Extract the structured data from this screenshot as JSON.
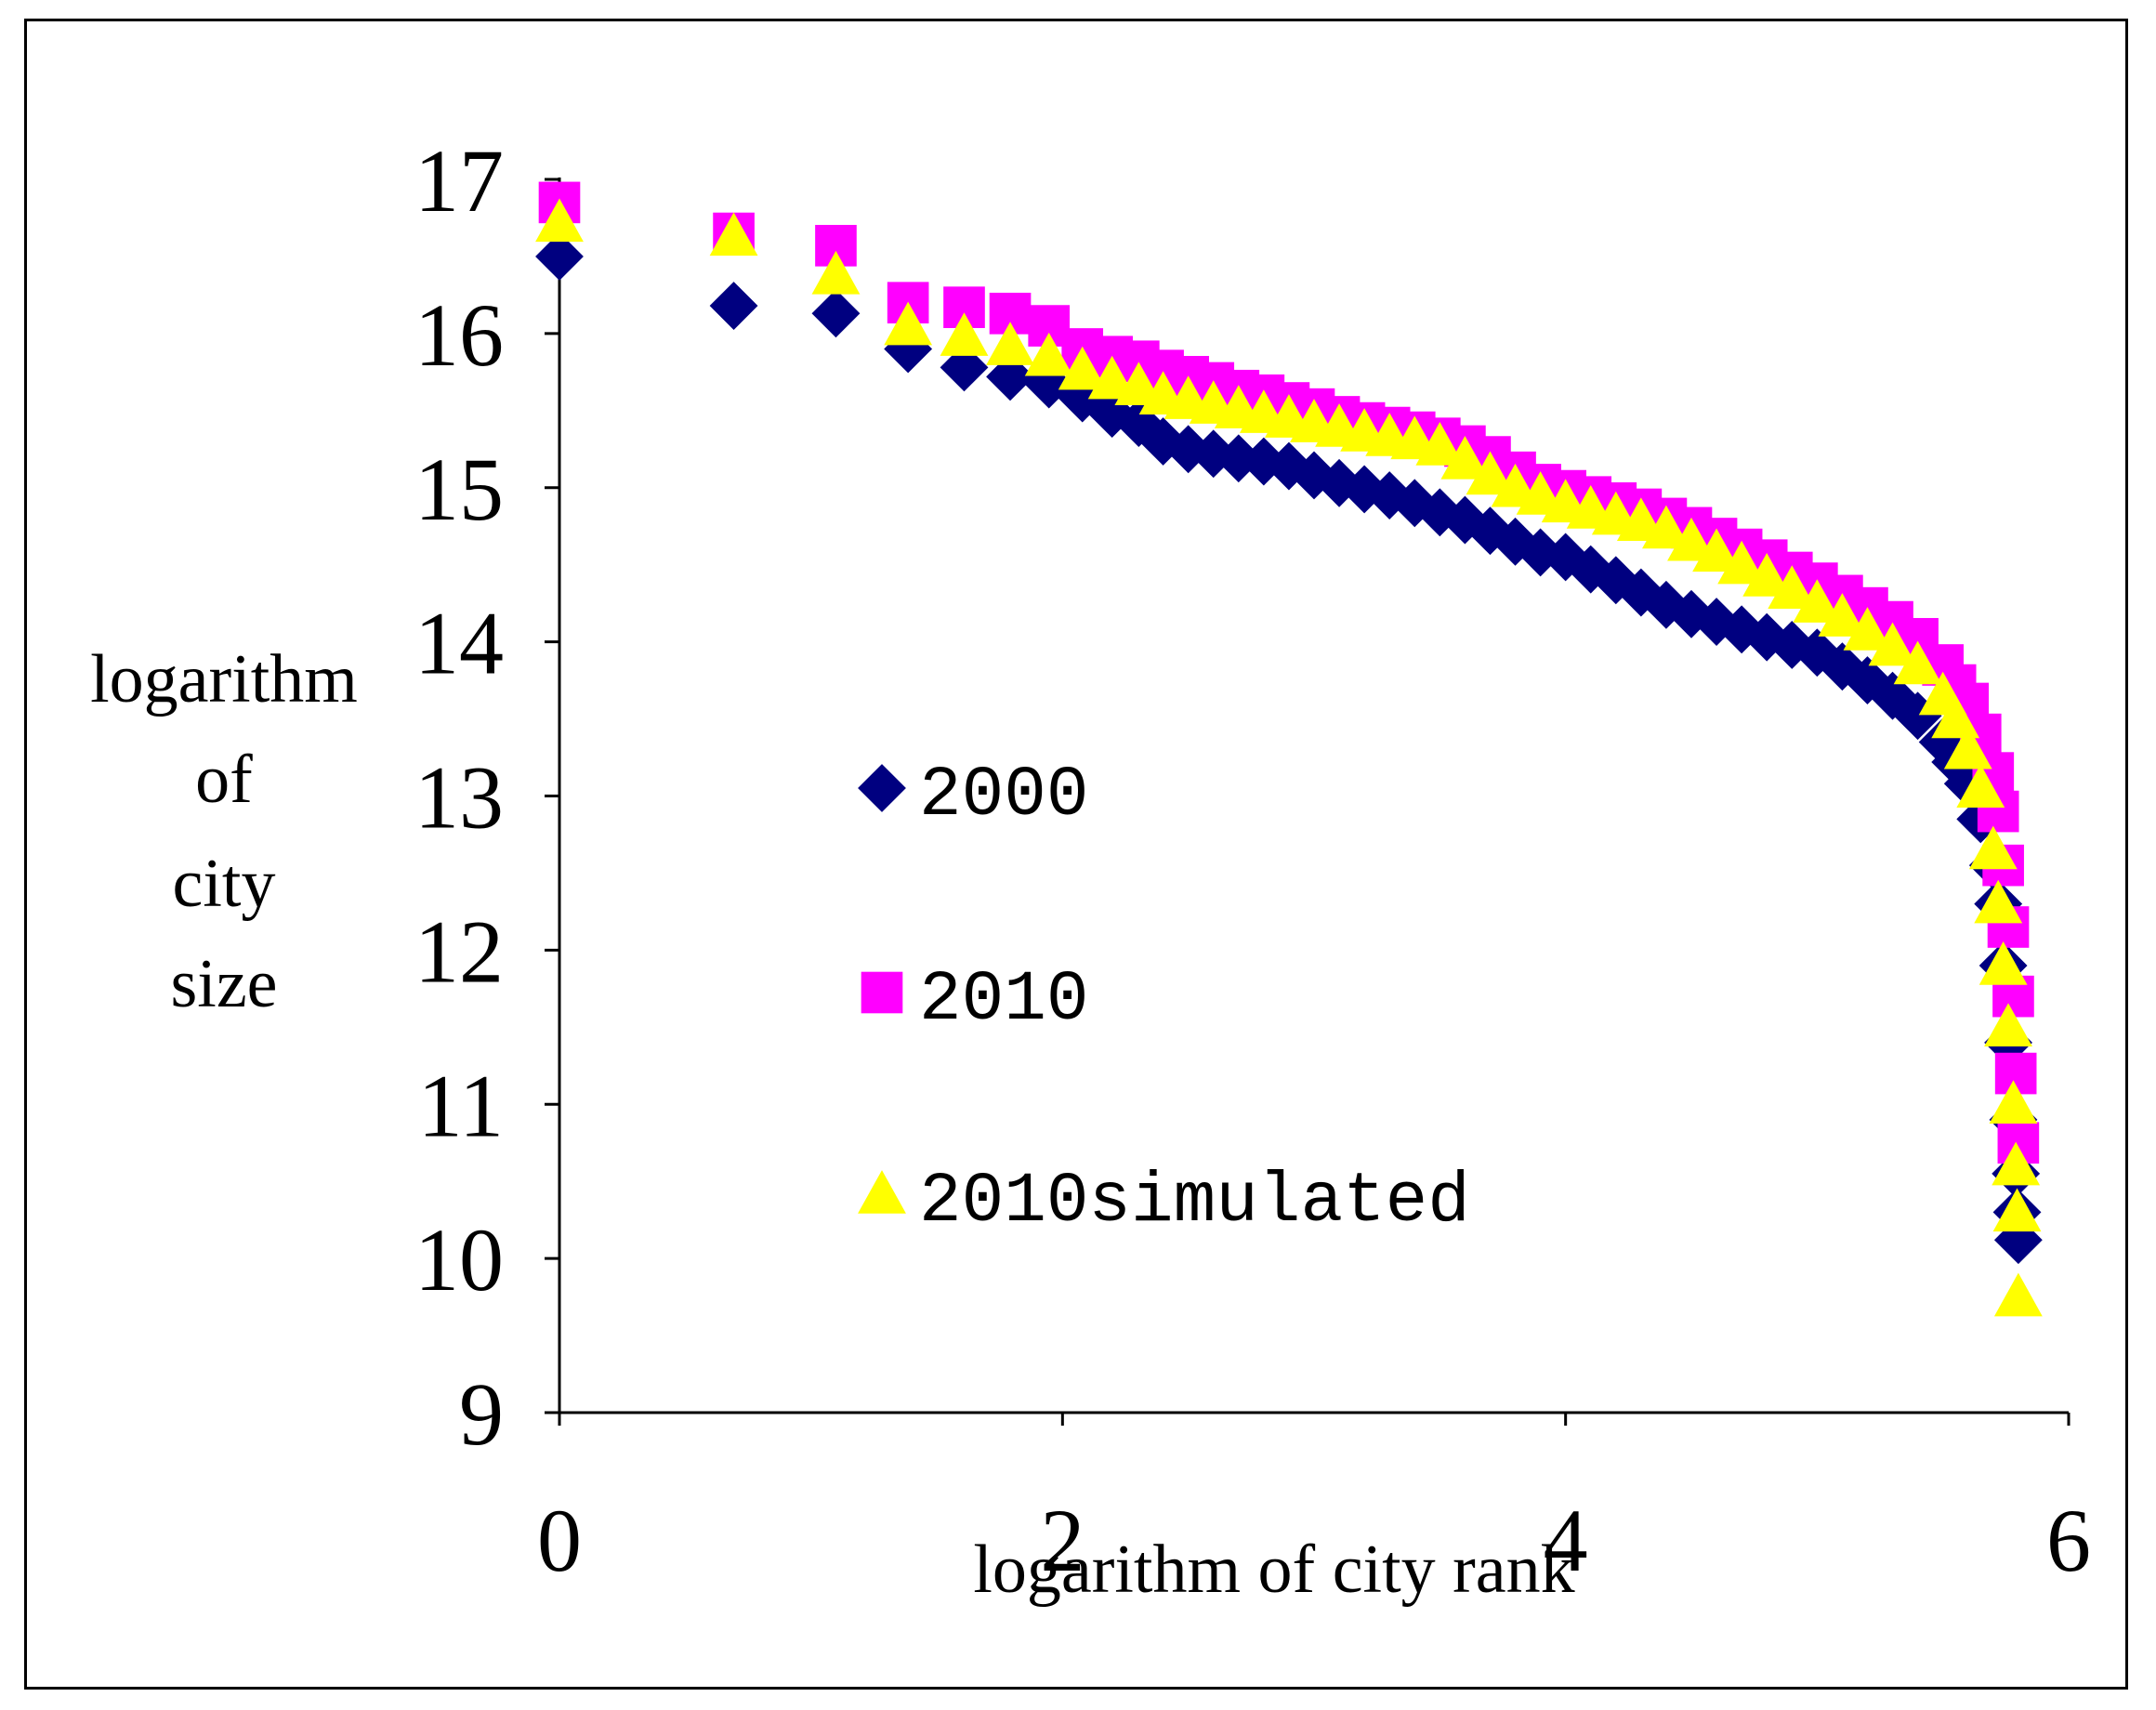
{
  "chart_data": {
    "type": "scatter",
    "title": "",
    "xlabel": "logarithm of city rank",
    "ylabel_lines": [
      "logarithm",
      "of",
      "city",
      "size"
    ],
    "xlim": [
      0,
      6
    ],
    "ylim": [
      9,
      17
    ],
    "x_ticks": [
      0,
      2,
      4,
      6
    ],
    "y_ticks": [
      9,
      10,
      11,
      12,
      13,
      14,
      15,
      16,
      17
    ],
    "grid": false,
    "legend_position": "center-left",
    "series": [
      {
        "name": "2000",
        "marker": "diamond",
        "color": "#000080",
        "x": [
          0,
          0.693,
          1.099,
          1.386,
          1.609,
          1.792,
          1.946,
          2.079,
          2.197,
          2.303,
          2.4,
          2.5,
          2.6,
          2.7,
          2.8,
          2.9,
          3.0,
          3.1,
          3.2,
          3.3,
          3.4,
          3.5,
          3.6,
          3.7,
          3.8,
          3.9,
          4.0,
          4.1,
          4.2,
          4.3,
          4.4,
          4.5,
          4.6,
          4.7,
          4.8,
          4.9,
          5.0,
          5.1,
          5.2,
          5.3,
          5.4,
          5.5,
          5.55,
          5.6,
          5.65,
          5.7,
          5.72,
          5.74,
          5.76,
          5.78,
          5.79,
          5.795,
          5.8
        ],
        "y": [
          16.5,
          16.18,
          16.13,
          15.9,
          15.78,
          15.72,
          15.67,
          15.58,
          15.48,
          15.42,
          15.3,
          15.25,
          15.22,
          15.19,
          15.17,
          15.14,
          15.08,
          15.03,
          14.99,
          14.95,
          14.9,
          14.84,
          14.79,
          14.72,
          14.65,
          14.58,
          14.55,
          14.47,
          14.4,
          14.32,
          14.24,
          14.18,
          14.13,
          14.08,
          14.03,
          13.98,
          13.93,
          13.84,
          13.75,
          13.65,
          13.52,
          13.35,
          13.22,
          13.08,
          12.85,
          12.55,
          12.3,
          11.9,
          11.4,
          10.9,
          10.55,
          10.3,
          10.12
        ]
      },
      {
        "name": "2010",
        "marker": "square",
        "color": "#FF00FF",
        "x": [
          0,
          0.693,
          1.099,
          1.386,
          1.609,
          1.792,
          1.946,
          2.079,
          2.197,
          2.303,
          2.4,
          2.5,
          2.6,
          2.7,
          2.8,
          2.9,
          3.0,
          3.1,
          3.2,
          3.3,
          3.4,
          3.5,
          3.6,
          3.7,
          3.8,
          3.9,
          4.0,
          4.1,
          4.2,
          4.3,
          4.4,
          4.5,
          4.6,
          4.7,
          4.8,
          4.9,
          5.0,
          5.1,
          5.2,
          5.3,
          5.4,
          5.5,
          5.55,
          5.6,
          5.65,
          5.7,
          5.72,
          5.74,
          5.76,
          5.78,
          5.79,
          5.8
        ],
        "y": [
          16.85,
          16.65,
          16.57,
          16.2,
          16.17,
          16.13,
          16.05,
          15.9,
          15.85,
          15.82,
          15.76,
          15.72,
          15.68,
          15.63,
          15.6,
          15.55,
          15.51,
          15.46,
          15.42,
          15.39,
          15.36,
          15.32,
          15.27,
          15.2,
          15.1,
          15.02,
          14.98,
          14.94,
          14.9,
          14.86,
          14.8,
          14.74,
          14.67,
          14.6,
          14.53,
          14.45,
          14.38,
          14.3,
          14.22,
          14.13,
          14.02,
          13.85,
          13.72,
          13.6,
          13.4,
          13.15,
          12.9,
          12.55,
          12.15,
          11.7,
          11.2,
          10.75
        ]
      },
      {
        "name": "2010simulated",
        "marker": "triangle",
        "color": "#FFFF00",
        "x": [
          0,
          0.693,
          1.099,
          1.386,
          1.609,
          1.792,
          1.946,
          2.079,
          2.197,
          2.303,
          2.4,
          2.5,
          2.6,
          2.7,
          2.8,
          2.9,
          3.0,
          3.1,
          3.2,
          3.3,
          3.4,
          3.5,
          3.6,
          3.7,
          3.8,
          3.9,
          4.0,
          4.1,
          4.2,
          4.3,
          4.4,
          4.5,
          4.6,
          4.7,
          4.8,
          4.9,
          5.0,
          5.1,
          5.2,
          5.3,
          5.4,
          5.5,
          5.55,
          5.6,
          5.65,
          5.7,
          5.72,
          5.74,
          5.76,
          5.78,
          5.79,
          5.795,
          5.8
        ],
        "y": [
          16.72,
          16.63,
          16.38,
          16.05,
          15.98,
          15.92,
          15.85,
          15.76,
          15.7,
          15.66,
          15.6,
          15.57,
          15.54,
          15.51,
          15.48,
          15.45,
          15.42,
          15.39,
          15.36,
          15.33,
          15.31,
          15.27,
          15.18,
          15.08,
          15.0,
          14.95,
          14.9,
          14.86,
          14.82,
          14.78,
          14.73,
          14.65,
          14.58,
          14.5,
          14.42,
          14.34,
          14.25,
          14.16,
          14.07,
          13.97,
          13.85,
          13.65,
          13.5,
          13.3,
          13.05,
          12.65,
          12.3,
          11.9,
          11.5,
          11.0,
          10.6,
          10.3,
          9.75
        ]
      }
    ]
  }
}
